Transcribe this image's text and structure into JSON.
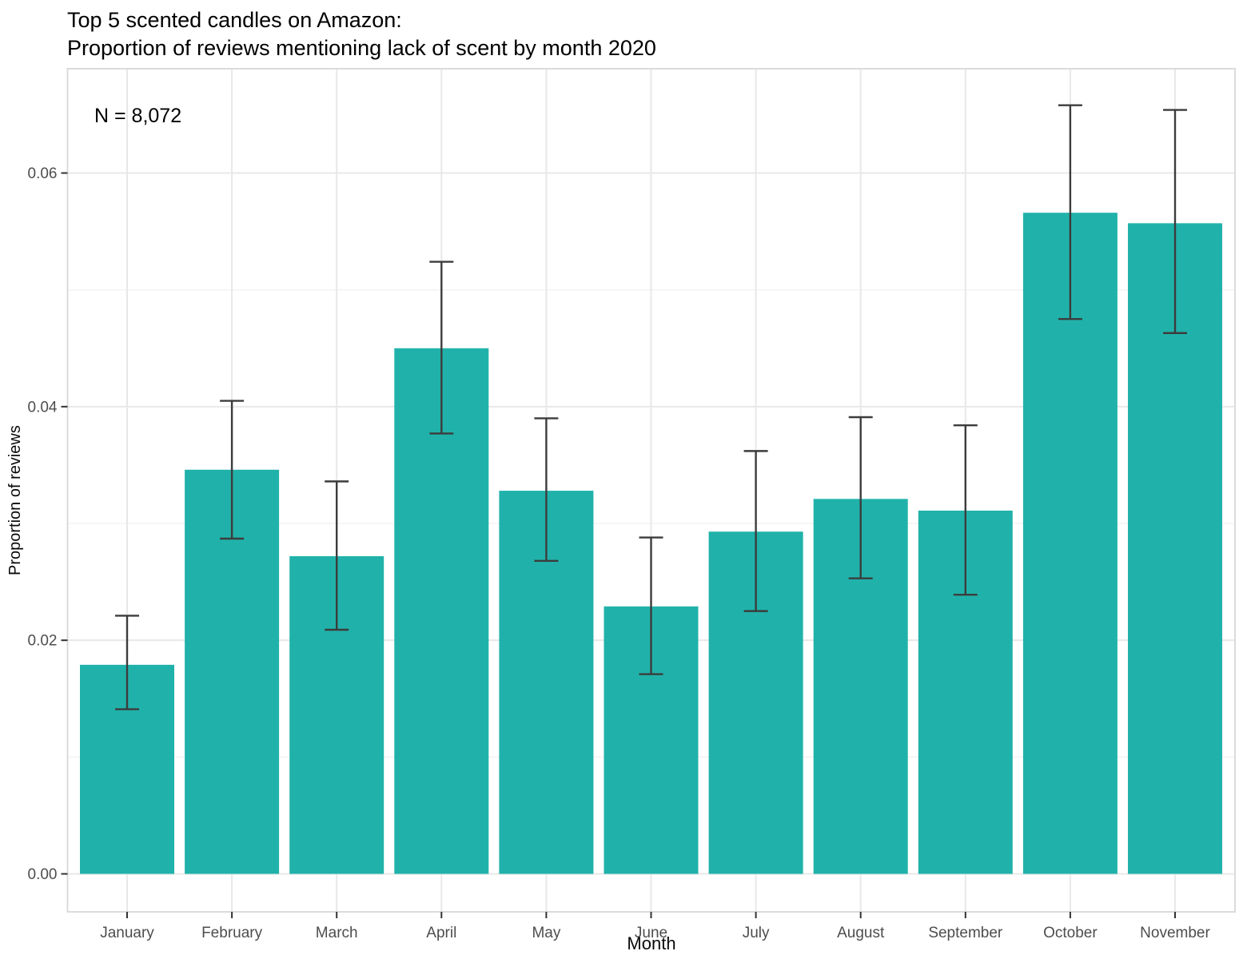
{
  "title": {
    "line1": "Top 5 scented candles on Amazon:",
    "line2": "Proportion of reviews mentioning lack of scent by month 2020"
  },
  "annotation": {
    "sample_size": "N = 8,072"
  },
  "axes": {
    "x_title": "Month",
    "y_title": "Proportion of reviews"
  },
  "chart_data": {
    "type": "bar",
    "title": "Top 5 scented candles on Amazon: Proportion of reviews mentioning lack of scent by month 2020",
    "xlabel": "Month",
    "ylabel": "Proportion of reviews",
    "categories": [
      "January",
      "February",
      "March",
      "April",
      "May",
      "June",
      "July",
      "August",
      "September",
      "October",
      "November"
    ],
    "values": [
      0.0179,
      0.0346,
      0.0272,
      0.045,
      0.0328,
      0.0229,
      0.0293,
      0.0321,
      0.0311,
      0.0566,
      0.0557
    ],
    "ci_low": [
      0.0141,
      0.0287,
      0.0209,
      0.0377,
      0.0268,
      0.0171,
      0.0225,
      0.0253,
      0.0239,
      0.0475,
      0.0463
    ],
    "ci_high": [
      0.0221,
      0.0405,
      0.0336,
      0.0524,
      0.039,
      0.0288,
      0.0362,
      0.0391,
      0.0384,
      0.0658,
      0.0654
    ],
    "ylim": [
      -0.003,
      0.069
    ],
    "yticks": [
      0.0,
      0.02,
      0.04,
      0.06
    ],
    "ytick_labels": [
      "0.00",
      "0.02",
      "0.04",
      "0.06"
    ],
    "yticks_minor": [
      0.01,
      0.03,
      0.05
    ],
    "grid": "major-and-minor",
    "legend": "none",
    "bar_color": "#20B2AA",
    "errorbar_color": "#3C3C3C",
    "grid_major_color": "#E8E8E8",
    "grid_minor_color": "#F3F3F3",
    "panel_border_color": "#DBDBDB",
    "tick_mark_color": "#333333",
    "tick_text_color": "#4D4D4D"
  }
}
